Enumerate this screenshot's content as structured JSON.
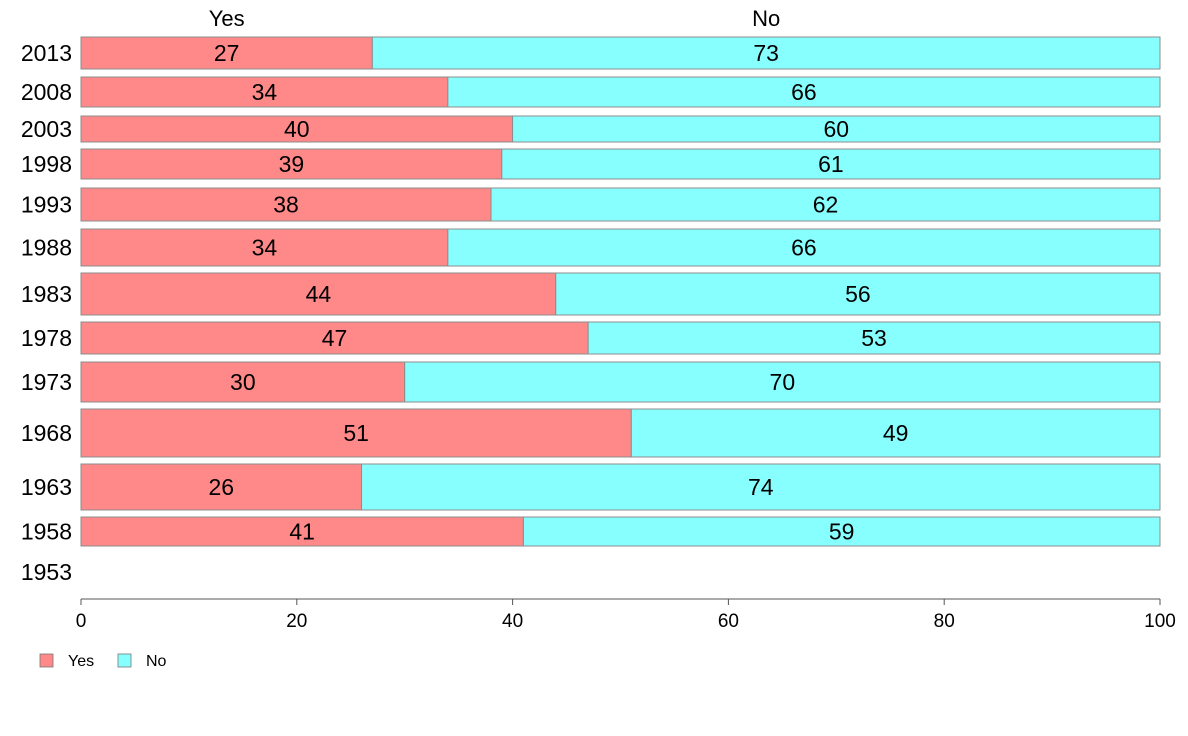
{
  "chart_data": {
    "type": "bar",
    "orientation": "horizontal",
    "stacked": true,
    "top_labels": [
      "Yes",
      "No"
    ],
    "categories": [
      "2013",
      "2008",
      "2003",
      "1998",
      "1993",
      "1988",
      "1983",
      "1978",
      "1973",
      "1968",
      "1963",
      "1958",
      "1953"
    ],
    "series": [
      {
        "name": "Yes",
        "color": "#ff8888",
        "values": [
          27,
          34,
          40,
          39,
          38,
          34,
          44,
          47,
          30,
          51,
          26,
          41,
          null
        ]
      },
      {
        "name": "No",
        "color": "#88ffff",
        "values": [
          73,
          66,
          60,
          61,
          62,
          66,
          56,
          53,
          70,
          49,
          74,
          59,
          null
        ]
      }
    ],
    "xlim": [
      0,
      100
    ],
    "xticks": [
      0,
      20,
      40,
      60,
      80,
      100
    ],
    "legend": [
      "Yes",
      "No"
    ],
    "legend_position": "bottom-left",
    "grid": false
  }
}
